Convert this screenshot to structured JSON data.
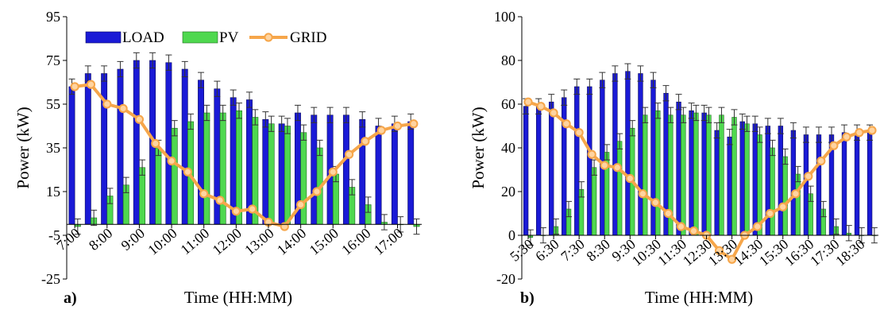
{
  "colors": {
    "load": "#1a1ad6",
    "pv": "#4fd84f",
    "grid": "#f6a64a",
    "grid_marker": "#ffd4a0",
    "error": "#333333"
  },
  "chart_data": [
    {
      "type": "bar",
      "panel_label": "a)",
      "xlabel": "Time (HH:MM)",
      "ylabel": "Power (kW)",
      "ylim": [
        -25,
        95
      ],
      "yticks": [
        -25,
        -5,
        15,
        35,
        55,
        75,
        95
      ],
      "grid": false,
      "legend": "top-left, inside plot",
      "x_tick_labels": [
        "7:00",
        "8:00",
        "9:00",
        "10:00",
        "11:00",
        "12:00",
        "13:00",
        "14:00",
        "15:00",
        "16:00",
        "17:00"
      ],
      "x_tick_every": 2,
      "series": [
        {
          "name": "LOAD",
          "kind": "bar",
          "values": [
            63,
            69,
            69,
            71,
            75,
            75,
            74,
            71,
            66,
            62,
            58,
            57,
            48,
            46,
            51,
            50,
            50,
            50,
            48,
            45,
            46,
            47
          ]
        },
        {
          "name": "PV",
          "kind": "bar",
          "values": [
            -1,
            3,
            13,
            18,
            26,
            35,
            44,
            47,
            51,
            51,
            52,
            49,
            46,
            45,
            42,
            35,
            23,
            17,
            9,
            1,
            0,
            -1
          ]
        },
        {
          "name": "GRID",
          "kind": "line",
          "values": [
            63,
            64,
            55,
            53,
            48,
            37,
            29,
            24,
            14,
            11,
            6,
            7,
            1,
            -1,
            9,
            15,
            24,
            32,
            38,
            43,
            45,
            46
          ]
        }
      ]
    },
    {
      "type": "bar",
      "panel_label": "b)",
      "xlabel": "Time (HH:MM)",
      "ylabel": "Power (kW)",
      "ylim": [
        -20,
        100
      ],
      "yticks": [
        -20,
        0,
        20,
        40,
        60,
        80,
        100
      ],
      "grid": false,
      "x_tick_labels": [
        "5:30",
        "6:30",
        "7:30",
        "8:30",
        "9:30",
        "10:30",
        "11:30",
        "12:30",
        "13:30",
        "14:30",
        "15:30",
        "16:30",
        "17:30",
        "18:30"
      ],
      "x_tick_every": 2,
      "series": [
        {
          "name": "LOAD",
          "kind": "bar",
          "values": [
            59,
            59,
            61,
            63,
            68,
            68,
            71,
            74,
            75,
            74,
            71,
            65,
            61,
            57,
            56,
            48,
            45,
            52,
            51,
            50,
            50,
            48,
            46,
            46,
            46,
            47,
            47,
            47
          ]
        },
        {
          "name": "PV",
          "kind": "bar",
          "values": [
            -1,
            0,
            4,
            12,
            21,
            31,
            38,
            43,
            49,
            55,
            57,
            55,
            55,
            56,
            55,
            55,
            54,
            51,
            46,
            40,
            36,
            28,
            19,
            12,
            4,
            1,
            0,
            0
          ]
        },
        {
          "name": "GRID",
          "kind": "line",
          "values": [
            61,
            59,
            56,
            51,
            47,
            37,
            32,
            31,
            26,
            19,
            15,
            10,
            4,
            2,
            0,
            -7,
            -11,
            0,
            4,
            10,
            13,
            19,
            27,
            34,
            41,
            45,
            47,
            48
          ]
        }
      ]
    }
  ]
}
